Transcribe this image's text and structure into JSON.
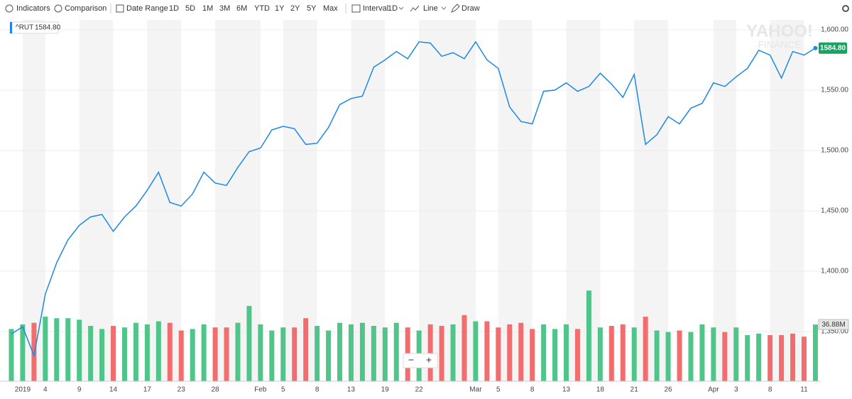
{
  "toolbar": [
    "Indicators",
    "Comparison",
    "Date Range",
    "1D",
    "5D",
    "1M",
    "3M",
    "6M",
    "YTD",
    "1Y",
    "2Y",
    "5Y",
    "Max",
    "Interval",
    "1D",
    "Line",
    "Draw"
  ],
  "zoom": [
    "−",
    "+"
  ],
  "watermark": [
    "YAHOO!",
    "FINANCE"
  ],
  "chart_data": {
    "type": "line",
    "categories": [
      null,
      "2019",
      null,
      "4",
      null,
      null,
      "9",
      null,
      null,
      "14",
      null,
      null,
      "17",
      null,
      null,
      "23",
      null,
      null,
      "28",
      null,
      null,
      null,
      "Feb",
      null,
      "5",
      null,
      null,
      "8",
      null,
      null,
      "13",
      null,
      null,
      "19",
      null,
      null,
      "22",
      null,
      null,
      null,
      null,
      "Mar",
      null,
      "5",
      null,
      null,
      "8",
      null,
      null,
      "13",
      null,
      null,
      "18",
      null,
      null,
      "21",
      null,
      null,
      "26",
      null,
      null,
      null,
      "Apr",
      null,
      "3",
      null,
      null,
      "8",
      null,
      null,
      "11",
      null
    ],
    "series": [
      {
        "name": "^RUT",
        "color": "#1e88e5",
        "values": [
          1348,
          1354,
          1330,
          1381,
          1407,
          1426,
          1438,
          1445,
          1447,
          1433,
          1445,
          1454,
          1467,
          1482,
          1457,
          1454,
          1464,
          1482,
          1473,
          1471,
          1486,
          1499,
          1502,
          1517,
          1520,
          1518,
          1505,
          1506,
          1519,
          1538,
          1543,
          1545,
          1569,
          1575,
          1582,
          1576,
          1590,
          1589,
          1578,
          1581,
          1576,
          1590,
          1575,
          1568,
          1536,
          1524,
          1522,
          1549,
          1550,
          1556,
          1549,
          1553,
          1564,
          1555,
          1544,
          1563,
          1505,
          1513,
          1528,
          1522,
          1535,
          1539,
          1556,
          1553,
          1561,
          1568,
          1583,
          1579,
          1560,
          1582,
          1579,
          1584.8
        ],
        "last_label": "1584.80"
      }
    ],
    "volume": {
      "values": [
        34,
        37,
        38,
        42,
        41,
        41,
        40,
        36,
        34,
        36,
        35,
        38,
        37,
        39,
        38,
        33,
        34,
        37,
        35,
        35,
        38,
        49,
        37,
        33,
        35,
        35,
        41,
        36,
        33,
        38,
        37,
        38,
        36,
        35,
        38,
        35,
        33,
        37,
        36,
        37,
        43,
        39,
        39,
        35,
        37,
        38,
        34,
        37,
        34,
        37,
        34,
        59,
        35,
        36,
        37,
        35,
        42,
        33,
        32,
        33,
        32,
        37,
        35,
        32,
        35,
        30,
        31,
        30,
        30,
        31,
        29,
        36.88
      ],
      "colors": [
        "#4fc58a",
        "#4fc58a",
        "#f26e6e",
        "#4fc58a",
        "#4fc58a",
        "#4fc58a",
        "#4fc58a",
        "#4fc58a",
        "#4fc58a",
        "#f26e6e",
        "#4fc58a",
        "#4fc58a",
        "#4fc58a",
        "#4fc58a",
        "#f26e6e",
        "#f26e6e",
        "#4fc58a",
        "#4fc58a",
        "#f26e6e",
        "#f26e6e",
        "#4fc58a",
        "#4fc58a",
        "#4fc58a",
        "#4fc58a",
        "#4fc58a",
        "#f26e6e",
        "#f26e6e",
        "#4fc58a",
        "#4fc58a",
        "#4fc58a",
        "#4fc58a",
        "#4fc58a",
        "#4fc58a",
        "#4fc58a",
        "#4fc58a",
        "#f26e6e",
        "#4fc58a",
        "#f26e6e",
        "#f26e6e",
        "#4fc58a",
        "#f26e6e",
        "#4fc58a",
        "#f26e6e",
        "#f26e6e",
        "#f26e6e",
        "#f26e6e",
        "#f26e6e",
        "#4fc58a",
        "#4fc58a",
        "#4fc58a",
        "#f26e6e",
        "#4fc58a",
        "#4fc58a",
        "#f26e6e",
        "#f26e6e",
        "#4fc58a",
        "#f26e6e",
        "#4fc58a",
        "#4fc58a",
        "#f26e6e",
        "#4fc58a",
        "#4fc58a",
        "#4fc58a",
        "#f26e6e",
        "#4fc58a",
        "#4fc58a",
        "#4fc58a",
        "#f26e6e",
        "#f26e6e",
        "#f26e6e",
        "#f26e6e",
        "#4fc58a"
      ],
      "ylim": [
        0,
        235
      ],
      "last_label": "36.88M"
    },
    "ylim": [
      1308.8,
      1608.2
    ],
    "yticks": [
      {
        "value": 1350,
        "label": "1,350.00"
      },
      {
        "value": 1400,
        "label": "1,400.00"
      },
      {
        "value": 1450,
        "label": "1,450.00"
      },
      {
        "value": 1500,
        "label": "1,500.00"
      },
      {
        "value": 1550,
        "label": "1,550.00"
      },
      {
        "value": 1600,
        "label": "1,600.00"
      }
    ],
    "grid": true
  }
}
